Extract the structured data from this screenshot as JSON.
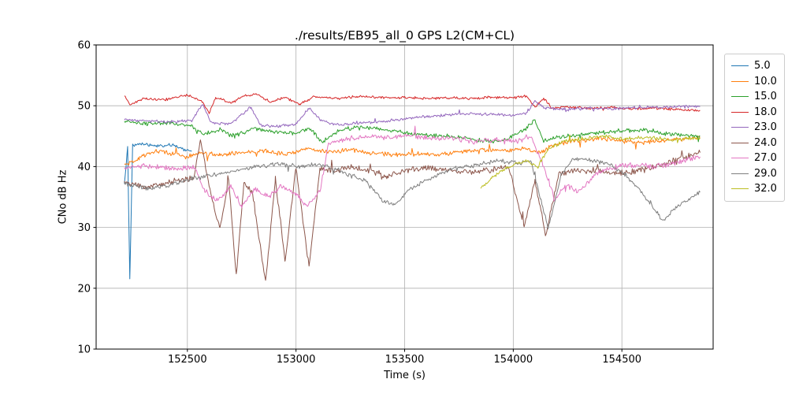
{
  "chart_data": {
    "type": "line",
    "title": "./results/EB95_all_0 GPS L2(CM+CL)",
    "xlabel": "Time (s)",
    "ylabel": "CNo dB Hz",
    "xlim": [
      152080,
      154920
    ],
    "ylim": [
      10,
      60
    ],
    "xticks": [
      152500,
      153000,
      153500,
      154000,
      154500
    ],
    "yticks": [
      10,
      20,
      30,
      40,
      50,
      60
    ],
    "grid": true,
    "grid_color": "#b0b0b0",
    "legend_position": "outside-right",
    "series": [
      {
        "name": "5.0",
        "color": "#1f77b4",
        "noise": 0.3,
        "points": [
          [
            152210,
            37
          ],
          [
            152225,
            43.2
          ],
          [
            152235,
            21.5
          ],
          [
            152248,
            43.5
          ],
          [
            152300,
            43.8
          ],
          [
            152360,
            43.3
          ],
          [
            152430,
            43.6
          ],
          [
            152480,
            42.9
          ],
          [
            152520,
            42.5
          ]
        ]
      },
      {
        "name": "10.0",
        "color": "#ff7f0e",
        "noise": 0.45,
        "points": [
          [
            152210,
            40.2
          ],
          [
            152280,
            41.5
          ],
          [
            152340,
            42.6
          ],
          [
            152420,
            42.2
          ],
          [
            152500,
            41.6
          ],
          [
            152560,
            42.3
          ],
          [
            152650,
            41.8
          ],
          [
            152750,
            42.4
          ],
          [
            152850,
            42.6
          ],
          [
            152950,
            42.0
          ],
          [
            153050,
            43.0
          ],
          [
            153150,
            42.4
          ],
          [
            153250,
            42.8
          ],
          [
            153350,
            42.2
          ],
          [
            153450,
            41.9
          ],
          [
            153550,
            42.1
          ],
          [
            153650,
            42.0
          ],
          [
            153750,
            42.4
          ],
          [
            153850,
            42.8
          ],
          [
            153950,
            42.5
          ],
          [
            154050,
            43.0
          ],
          [
            154120,
            42.2
          ],
          [
            154200,
            43.8
          ],
          [
            154300,
            44.3
          ],
          [
            154400,
            44.6
          ],
          [
            154500,
            44.2
          ],
          [
            154600,
            43.9
          ],
          [
            154700,
            44.3
          ],
          [
            154860,
            44.8
          ]
        ]
      },
      {
        "name": "15.0",
        "color": "#2ca02c",
        "noise": 0.4,
        "points": [
          [
            152210,
            47.4
          ],
          [
            152320,
            47.0
          ],
          [
            152420,
            47.2
          ],
          [
            152520,
            46.6
          ],
          [
            152580,
            45.4
          ],
          [
            152650,
            46.2
          ],
          [
            152720,
            45.0
          ],
          [
            152800,
            46.3
          ],
          [
            152900,
            45.8
          ],
          [
            153000,
            45.5
          ],
          [
            153060,
            46.4
          ],
          [
            153120,
            44.0
          ],
          [
            153200,
            46.0
          ],
          [
            153300,
            46.6
          ],
          [
            153400,
            46.0
          ],
          [
            153500,
            45.6
          ],
          [
            153600,
            45.2
          ],
          [
            153700,
            45.0
          ],
          [
            153800,
            44.6
          ],
          [
            153900,
            44.0
          ],
          [
            153980,
            44.6
          ],
          [
            154050,
            46.0
          ],
          [
            154100,
            47.6
          ],
          [
            154140,
            44.2
          ],
          [
            154200,
            44.8
          ],
          [
            154300,
            45.2
          ],
          [
            154400,
            45.6
          ],
          [
            154500,
            45.9
          ],
          [
            154600,
            46.0
          ],
          [
            154700,
            45.4
          ],
          [
            154860,
            45.0
          ]
        ]
      },
      {
        "name": "18.0",
        "color": "#d62728",
        "noise": 0.25,
        "points": [
          [
            152210,
            51.6
          ],
          [
            152235,
            50.2
          ],
          [
            152300,
            51.2
          ],
          [
            152400,
            51.0
          ],
          [
            152500,
            51.8
          ],
          [
            152570,
            50.6
          ],
          [
            152600,
            48.8
          ],
          [
            152630,
            51.4
          ],
          [
            152700,
            50.4
          ],
          [
            152760,
            51.6
          ],
          [
            152820,
            51.9
          ],
          [
            152880,
            50.6
          ],
          [
            152950,
            51.4
          ],
          [
            153020,
            50.2
          ],
          [
            153080,
            51.5
          ],
          [
            153200,
            51.2
          ],
          [
            153300,
            51.6
          ],
          [
            153400,
            51.3
          ],
          [
            153500,
            51.4
          ],
          [
            153600,
            51.2
          ],
          [
            153700,
            51.3
          ],
          [
            153800,
            51.2
          ],
          [
            153900,
            51.4
          ],
          [
            154000,
            51.3
          ],
          [
            154060,
            51.6
          ],
          [
            154100,
            49.8
          ],
          [
            154140,
            51.2
          ],
          [
            154180,
            49.6
          ],
          [
            154250,
            49.8
          ],
          [
            154350,
            49.6
          ],
          [
            154450,
            49.7
          ],
          [
            154550,
            49.5
          ],
          [
            154650,
            49.6
          ],
          [
            154750,
            49.4
          ],
          [
            154860,
            49.2
          ]
        ]
      },
      {
        "name": "23.0",
        "color": "#9467bd",
        "noise": 0.3,
        "points": [
          [
            152210,
            47.7
          ],
          [
            152320,
            47.5
          ],
          [
            152420,
            47.3
          ],
          [
            152520,
            47.6
          ],
          [
            152570,
            50.3
          ],
          [
            152610,
            47.2
          ],
          [
            152700,
            47.0
          ],
          [
            152790,
            49.8
          ],
          [
            152840,
            46.8
          ],
          [
            152920,
            46.6
          ],
          [
            153000,
            47.0
          ],
          [
            153060,
            49.6
          ],
          [
            153120,
            47.4
          ],
          [
            153200,
            46.9
          ],
          [
            153300,
            47.1
          ],
          [
            153400,
            47.4
          ],
          [
            153500,
            47.9
          ],
          [
            153600,
            48.2
          ],
          [
            153700,
            48.5
          ],
          [
            153800,
            48.7
          ],
          [
            153900,
            48.6
          ],
          [
            154000,
            48.4
          ],
          [
            154060,
            48.8
          ],
          [
            154100,
            50.8
          ],
          [
            154150,
            49.6
          ],
          [
            154250,
            49.4
          ],
          [
            154350,
            49.6
          ],
          [
            154450,
            49.5
          ],
          [
            154550,
            49.7
          ],
          [
            154650,
            49.7
          ],
          [
            154750,
            49.8
          ],
          [
            154860,
            49.9
          ]
        ]
      },
      {
        "name": "24.0",
        "color": "#8c564b",
        "noise": 0.6,
        "points": [
          [
            152210,
            37.6
          ],
          [
            152300,
            36.6
          ],
          [
            152380,
            37.2
          ],
          [
            152460,
            37.8
          ],
          [
            152530,
            38.2
          ],
          [
            152560,
            44.3
          ],
          [
            152600,
            37.0
          ],
          [
            152650,
            29.5
          ],
          [
            152690,
            37.8
          ],
          [
            152725,
            22.0
          ],
          [
            152760,
            37.5
          ],
          [
            152800,
            35.5
          ],
          [
            152860,
            21.0
          ],
          [
            152905,
            38.0
          ],
          [
            152950,
            24.5
          ],
          [
            153000,
            39.8
          ],
          [
            153060,
            23.5
          ],
          [
            153110,
            39.8
          ],
          [
            153160,
            39.4
          ],
          [
            153250,
            39.8
          ],
          [
            153350,
            39.2
          ],
          [
            153420,
            38.4
          ],
          [
            153500,
            39.4
          ],
          [
            153600,
            39.8
          ],
          [
            153700,
            39.4
          ],
          [
            153800,
            39.1
          ],
          [
            153900,
            39.5
          ],
          [
            153980,
            40.0
          ],
          [
            154050,
            30.0
          ],
          [
            154100,
            37.8
          ],
          [
            154150,
            28.8
          ],
          [
            154210,
            38.8
          ],
          [
            154300,
            39.5
          ],
          [
            154400,
            39.2
          ],
          [
            154500,
            38.9
          ],
          [
            154600,
            39.5
          ],
          [
            154700,
            40.5
          ],
          [
            154860,
            42.3
          ]
        ]
      },
      {
        "name": "27.0",
        "color": "#e377c2",
        "noise": 0.55,
        "points": [
          [
            152210,
            39.9
          ],
          [
            152330,
            40.2
          ],
          [
            152430,
            39.6
          ],
          [
            152530,
            40.0
          ],
          [
            152580,
            36.0
          ],
          [
            152640,
            34.2
          ],
          [
            152700,
            37.0
          ],
          [
            152750,
            33.2
          ],
          [
            152810,
            36.5
          ],
          [
            152870,
            35.0
          ],
          [
            152930,
            36.8
          ],
          [
            153000,
            35.5
          ],
          [
            153050,
            33.4
          ],
          [
            153110,
            36.0
          ],
          [
            153150,
            43.8
          ],
          [
            153220,
            44.4
          ],
          [
            153320,
            45.0
          ],
          [
            153420,
            44.7
          ],
          [
            153520,
            45.1
          ],
          [
            153620,
            44.6
          ],
          [
            153720,
            44.8
          ],
          [
            153820,
            44.1
          ],
          [
            153920,
            44.5
          ],
          [
            154020,
            44.2
          ],
          [
            154080,
            45.0
          ],
          [
            154140,
            40.0
          ],
          [
            154190,
            34.5
          ],
          [
            154240,
            37.0
          ],
          [
            154300,
            35.8
          ],
          [
            154380,
            38.8
          ],
          [
            154460,
            39.8
          ],
          [
            154550,
            40.4
          ],
          [
            154650,
            40.0
          ],
          [
            154740,
            40.6
          ],
          [
            154860,
            41.6
          ]
        ]
      },
      {
        "name": "29.0",
        "color": "#7f7f7f",
        "noise": 0.45,
        "points": [
          [
            152210,
            37.2
          ],
          [
            152330,
            36.4
          ],
          [
            152420,
            37.0
          ],
          [
            152520,
            38.0
          ],
          [
            152620,
            38.6
          ],
          [
            152720,
            39.4
          ],
          [
            152820,
            40.0
          ],
          [
            152920,
            40.4
          ],
          [
            153020,
            40.0
          ],
          [
            153120,
            40.4
          ],
          [
            153220,
            39.0
          ],
          [
            153320,
            37.6
          ],
          [
            153400,
            34.4
          ],
          [
            153450,
            33.6
          ],
          [
            153520,
            36.2
          ],
          [
            153620,
            38.2
          ],
          [
            153720,
            39.6
          ],
          [
            153820,
            40.2
          ],
          [
            153920,
            41.0
          ],
          [
            154020,
            40.6
          ],
          [
            154080,
            41.0
          ],
          [
            154120,
            35.5
          ],
          [
            154160,
            29.8
          ],
          [
            154220,
            38.5
          ],
          [
            154270,
            41.2
          ],
          [
            154350,
            41.0
          ],
          [
            154450,
            40.4
          ],
          [
            154520,
            38.5
          ],
          [
            154580,
            36.2
          ],
          [
            154640,
            33.5
          ],
          [
            154690,
            31.0
          ],
          [
            154740,
            33.0
          ],
          [
            154860,
            35.8
          ]
        ]
      },
      {
        "name": "32.0",
        "color": "#bcbd22",
        "noise": 0.4,
        "points": [
          [
            153850,
            36.4
          ],
          [
            153900,
            38.0
          ],
          [
            153950,
            39.4
          ],
          [
            154010,
            40.4
          ],
          [
            154060,
            41.0
          ],
          [
            154110,
            39.8
          ],
          [
            154160,
            42.8
          ],
          [
            154220,
            44.0
          ],
          [
            154320,
            44.6
          ],
          [
            154420,
            45.0
          ],
          [
            154520,
            44.5
          ],
          [
            154620,
            44.8
          ],
          [
            154720,
            44.4
          ],
          [
            154860,
            44.7
          ]
        ]
      }
    ]
  }
}
